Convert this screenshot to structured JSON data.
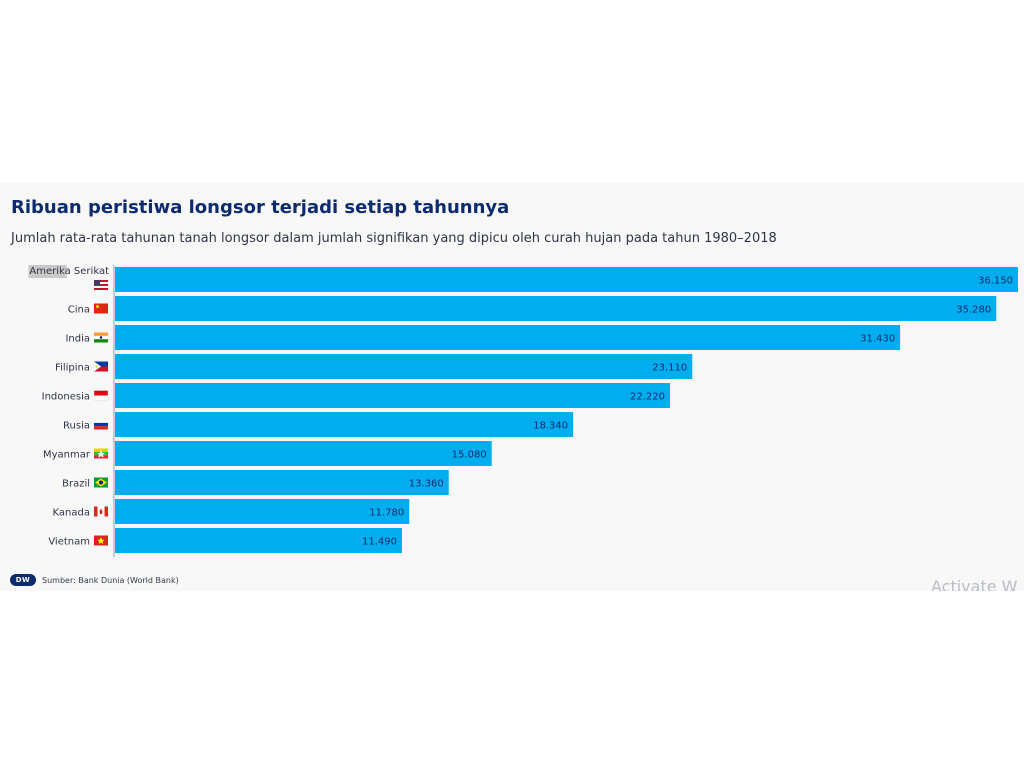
{
  "title": "Ribuan peristiwa longsor terjadi setiap tahunnya",
  "subtitle": "Jumlah rata-rata tahunan tanah longsor dalam jumlah signifikan yang dipicu oleh curah hujan pada tahun 1980–2018",
  "footer": {
    "logo_text": "DW",
    "source": "Sumber: Bank Dunia (World Bank)"
  },
  "watermark": "Activate W",
  "colors": {
    "bar": "#00adef",
    "title": "#0c2b6e",
    "card_background": "#f8f8f9"
  },
  "chart_data": {
    "type": "bar",
    "orientation": "horizontal",
    "categories": [
      "Amerika Serikat",
      "Cina",
      "India",
      "Filipina",
      "Indonesia",
      "Rusia",
      "Myanmar",
      "Brazil",
      "Kanada",
      "Vietnam"
    ],
    "flag_icons": [
      "usa-flag-icon",
      "china-flag-icon",
      "india-flag-icon",
      "philippines-flag-icon",
      "indonesia-flag-icon",
      "russia-flag-icon",
      "myanmar-flag-icon",
      "brazil-flag-icon",
      "canada-flag-icon",
      "vietnam-flag-icon"
    ],
    "values": [
      36150,
      35280,
      31430,
      23110,
      22220,
      18340,
      15080,
      13360,
      11780,
      11490
    ],
    "value_labels": [
      "36.150",
      "35.280",
      "31.430",
      "23.110",
      "22.220",
      "18.340",
      "15.080",
      "13.360",
      "11.780",
      "11.490"
    ],
    "xlim": [
      0,
      36150
    ],
    "grid": false,
    "legend": "none"
  }
}
